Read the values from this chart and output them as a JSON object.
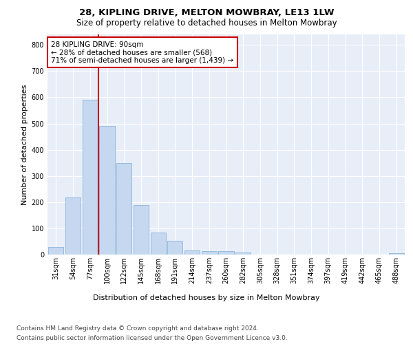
{
  "title1": "28, KIPLING DRIVE, MELTON MOWBRAY, LE13 1LW",
  "title2": "Size of property relative to detached houses in Melton Mowbray",
  "xlabel": "Distribution of detached houses by size in Melton Mowbray",
  "ylabel": "Number of detached properties",
  "categories": [
    "31sqm",
    "54sqm",
    "77sqm",
    "100sqm",
    "122sqm",
    "145sqm",
    "168sqm",
    "191sqm",
    "214sqm",
    "237sqm",
    "260sqm",
    "282sqm",
    "305sqm",
    "328sqm",
    "351sqm",
    "374sqm",
    "397sqm",
    "419sqm",
    "442sqm",
    "465sqm",
    "488sqm"
  ],
  "values": [
    30,
    218,
    590,
    490,
    350,
    190,
    85,
    53,
    17,
    13,
    13,
    7,
    0,
    0,
    0,
    0,
    0,
    0,
    0,
    0,
    6
  ],
  "bar_color": "#c5d8f0",
  "bar_edgecolor": "#8ab4d8",
  "vline_x": 2.5,
  "vline_color": "#cc0000",
  "annotation_text": "28 KIPLING DRIVE: 90sqm\n← 28% of detached houses are smaller (568)\n71% of semi-detached houses are larger (1,439) →",
  "annotation_box_color": "#ffffff",
  "annotation_box_edgecolor": "#cc0000",
  "ylim": [
    0,
    840
  ],
  "yticks": [
    0,
    100,
    200,
    300,
    400,
    500,
    600,
    700,
    800
  ],
  "background_color": "#e8eef8",
  "footer1": "Contains HM Land Registry data © Crown copyright and database right 2024.",
  "footer2": "Contains public sector information licensed under the Open Government Licence v3.0.",
  "title1_fontsize": 9.5,
  "title2_fontsize": 8.5,
  "xlabel_fontsize": 8,
  "ylabel_fontsize": 8,
  "tick_fontsize": 7,
  "annotation_fontsize": 7.5,
  "footer_fontsize": 6.5
}
